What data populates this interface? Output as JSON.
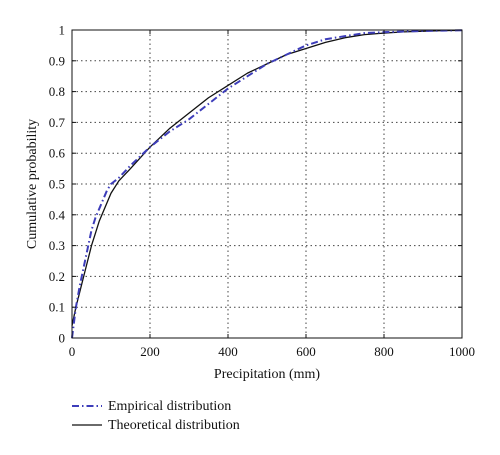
{
  "chart_data": {
    "type": "line",
    "title": "",
    "xlabel": "Precipitation (mm)",
    "ylabel": "Cumulative probability",
    "xlim": [
      0,
      1000
    ],
    "ylim": [
      0,
      1
    ],
    "x_ticks": [
      "0",
      "200",
      "400",
      "600",
      "800",
      "1000"
    ],
    "y_ticks": [
      "0",
      "0.1",
      "0.2",
      "0.3",
      "0.4",
      "0.5",
      "0.6",
      "0.7",
      "0.8",
      "0.9",
      "1"
    ],
    "grid": true,
    "legend_position": "below plot",
    "series": [
      {
        "name": "Empirical distribution",
        "style": "dash-dot",
        "color": "#3d3dba",
        "x": [
          0,
          10,
          20,
          30,
          40,
          50,
          60,
          70,
          80,
          90,
          100,
          120,
          150,
          200,
          250,
          300,
          350,
          400,
          450,
          500,
          550,
          600,
          650,
          700,
          750,
          800,
          850,
          900,
          950,
          1000
        ],
        "y": [
          0.0,
          0.1,
          0.17,
          0.23,
          0.29,
          0.35,
          0.39,
          0.42,
          0.45,
          0.48,
          0.5,
          0.52,
          0.56,
          0.62,
          0.67,
          0.71,
          0.76,
          0.81,
          0.85,
          0.89,
          0.92,
          0.95,
          0.97,
          0.98,
          0.99,
          0.993,
          0.995,
          0.997,
          0.998,
          0.999
        ]
      },
      {
        "name": "Theoretical distribution",
        "style": "solid",
        "color": "#111111",
        "x": [
          0,
          10,
          20,
          30,
          40,
          50,
          60,
          70,
          80,
          90,
          100,
          120,
          150,
          200,
          250,
          300,
          350,
          400,
          450,
          500,
          550,
          600,
          650,
          700,
          750,
          800,
          850,
          900,
          950,
          1000
        ],
        "y": [
          0.04,
          0.1,
          0.15,
          0.2,
          0.25,
          0.3,
          0.34,
          0.38,
          0.41,
          0.44,
          0.47,
          0.51,
          0.55,
          0.62,
          0.68,
          0.73,
          0.78,
          0.82,
          0.86,
          0.89,
          0.92,
          0.94,
          0.96,
          0.975,
          0.985,
          0.99,
          0.994,
          0.996,
          0.998,
          0.999
        ]
      }
    ]
  }
}
